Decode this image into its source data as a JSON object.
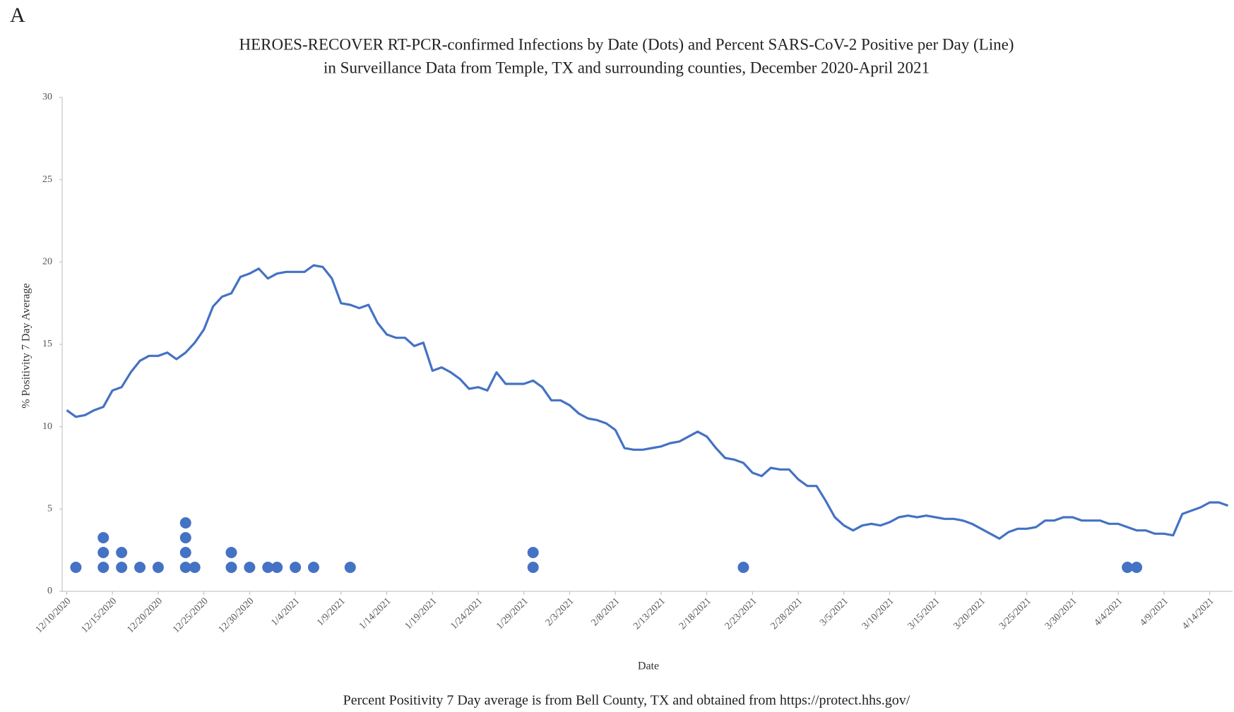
{
  "panel_label": "A",
  "chart_data": {
    "type": "line",
    "title": [
      "HEROES-RECOVER  RT-PCR-confirmed Infections by Date (Dots) and Percent SARS-CoV-2 Positive per Day (Line)",
      "in Surveillance Data  from Temple,  TX and surrounding counties, December  2020-April  2021"
    ],
    "x_label": "Date",
    "y_label": "% Positivity 7 Day Average",
    "note": "Percent Positivity 7 Day average is from Bell County,  TX and obtained from https://protect.hhs.gov/",
    "categories": [
      "12/10/2020",
      null,
      null,
      null,
      null,
      "12/15/2020",
      null,
      null,
      null,
      null,
      "12/20/2020",
      null,
      null,
      null,
      null,
      "12/25/2020",
      null,
      null,
      null,
      null,
      "12/30/2020",
      null,
      null,
      null,
      null,
      "1/4/2021",
      null,
      null,
      null,
      null,
      "1/9/2021",
      null,
      null,
      null,
      null,
      "1/14/2021",
      null,
      null,
      null,
      null,
      "1/19/2021",
      null,
      null,
      null,
      null,
      "1/24/2021",
      null,
      null,
      null,
      null,
      "1/29/2021",
      null,
      null,
      null,
      null,
      "2/3/2021",
      null,
      null,
      null,
      null,
      "2/8/2021",
      null,
      null,
      null,
      null,
      "2/13/2021",
      null,
      null,
      null,
      null,
      "2/18/2021",
      null,
      null,
      null,
      null,
      "2/23/2021",
      null,
      null,
      null,
      null,
      "2/28/2021",
      null,
      null,
      null,
      null,
      "3/5/2021",
      null,
      null,
      null,
      null,
      "3/10/2021",
      null,
      null,
      null,
      null,
      "3/15/2021",
      null,
      null,
      null,
      null,
      "3/20/2021",
      null,
      null,
      null,
      null,
      "3/25/2021",
      null,
      null,
      null,
      null,
      "3/30/2021",
      null,
      null,
      null,
      null,
      "4/4/2021",
      null,
      null,
      null,
      null,
      "4/9/2021",
      null,
      null,
      null,
      null,
      "4/14/2021",
      null,
      null
    ],
    "series": [
      {
        "type": "line",
        "color": "#4472c4",
        "values": [
          11.0,
          10.6,
          10.7,
          11.0,
          11.2,
          12.2,
          12.4,
          13.3,
          14.0,
          14.3,
          14.3,
          14.5,
          14.1,
          14.5,
          15.1,
          15.9,
          17.3,
          17.9,
          18.1,
          19.1,
          19.3,
          19.6,
          19.0,
          19.3,
          19.4,
          19.4,
          19.4,
          19.8,
          19.7,
          19.0,
          17.5,
          17.4,
          17.2,
          17.4,
          16.3,
          15.6,
          15.4,
          15.4,
          14.9,
          15.1,
          13.4,
          13.6,
          13.3,
          12.9,
          12.3,
          12.4,
          12.2,
          13.3,
          12.6,
          12.6,
          12.6,
          12.8,
          12.4,
          11.6,
          11.6,
          11.3,
          10.8,
          10.5,
          10.4,
          10.2,
          9.8,
          8.7,
          8.6,
          8.6,
          8.7,
          8.8,
          9.0,
          9.1,
          9.4,
          9.7,
          9.4,
          8.7,
          8.1,
          8.0,
          7.8,
          7.2,
          7.0,
          7.5,
          7.4,
          7.4,
          6.8,
          6.4,
          6.4,
          5.5,
          4.5,
          4.0,
          3.7,
          4.0,
          4.1,
          4.0,
          4.2,
          4.5,
          4.6,
          4.5,
          4.6,
          4.5,
          4.4,
          4.4,
          4.3,
          4.1,
          3.8,
          3.5,
          3.2,
          3.6,
          3.8,
          3.8,
          3.9,
          4.3,
          4.3,
          4.5,
          4.5,
          4.3,
          4.3,
          4.3,
          4.1,
          4.1,
          3.9,
          3.7,
          3.7,
          3.5,
          3.5,
          3.4,
          4.7,
          4.9,
          5.1,
          5.4,
          5.4,
          5.2
        ]
      },
      {
        "type": "dots",
        "color": "#4472c4",
        "values": [
          null,
          1,
          null,
          null,
          3,
          null,
          2,
          null,
          1,
          null,
          1,
          null,
          null,
          4,
          1,
          null,
          null,
          null,
          2,
          null,
          1,
          null,
          1,
          1,
          null,
          1,
          null,
          1,
          null,
          null,
          null,
          1,
          null,
          null,
          null,
          null,
          null,
          null,
          null,
          null,
          null,
          null,
          null,
          null,
          null,
          null,
          null,
          null,
          null,
          null,
          null,
          2,
          null,
          null,
          null,
          null,
          null,
          null,
          null,
          null,
          null,
          null,
          null,
          null,
          null,
          null,
          null,
          null,
          null,
          null,
          null,
          null,
          null,
          null,
          1,
          null,
          null,
          null,
          null,
          null,
          null,
          null,
          null,
          null,
          null,
          null,
          null,
          null,
          null,
          null,
          null,
          null,
          null,
          null,
          null,
          null,
          null,
          null,
          null,
          null,
          null,
          null,
          null,
          null,
          null,
          null,
          null,
          null,
          null,
          null,
          null,
          null,
          null,
          null,
          null,
          null,
          1,
          1,
          null,
          null,
          null,
          null,
          null,
          null,
          null,
          null,
          null,
          null
        ]
      }
    ],
    "ylim": [
      0,
      30
    ],
    "yticks": [
      0,
      5,
      10,
      15,
      20,
      25,
      30
    ],
    "grid": false
  }
}
